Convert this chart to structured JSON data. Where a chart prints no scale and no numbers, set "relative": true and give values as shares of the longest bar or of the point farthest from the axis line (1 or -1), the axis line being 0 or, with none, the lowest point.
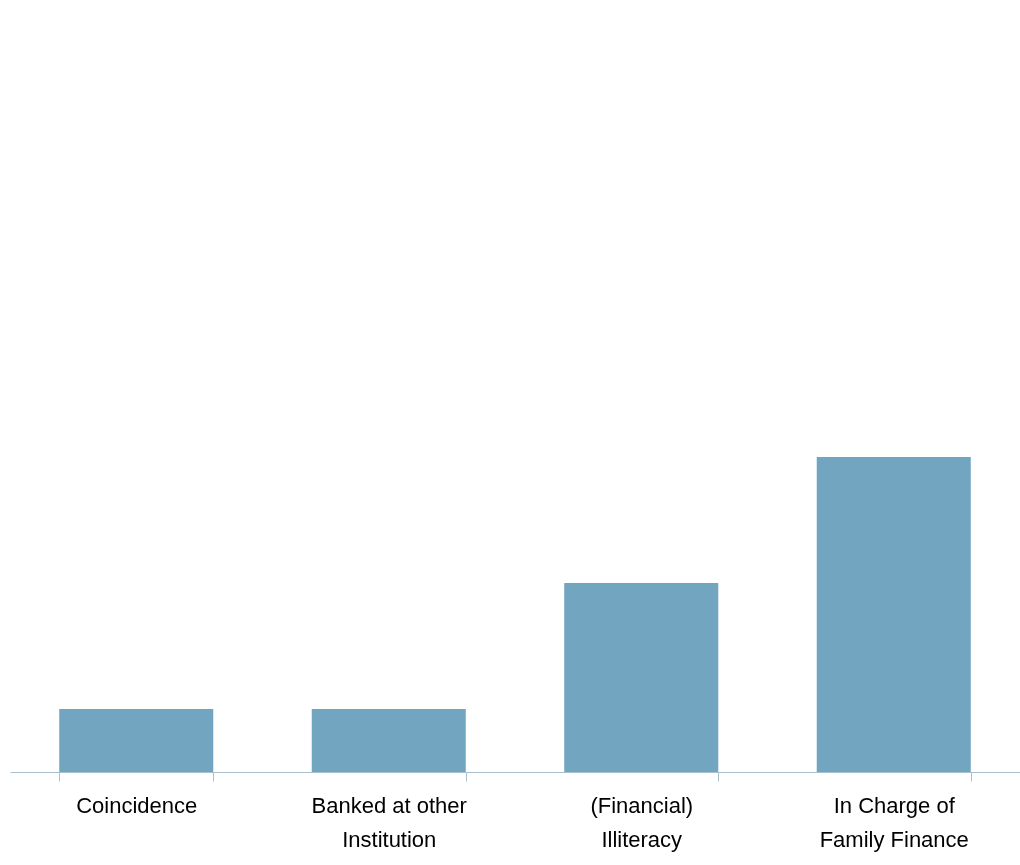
{
  "chart_data": {
    "type": "bar",
    "relative": true,
    "categories": [
      "Coincidence",
      "Banked at other Institution",
      "(Financial) Illiteracy",
      "In Charge of Family Finance"
    ],
    "values": [
      0.2,
      0.2,
      0.6,
      1
    ],
    "color": "#72a5bf"
  }
}
